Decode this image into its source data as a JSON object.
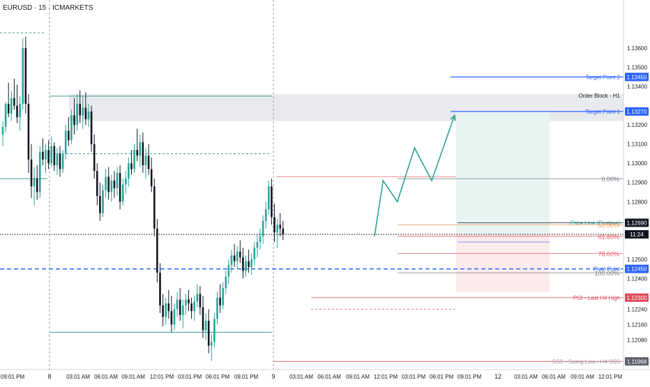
{
  "header": {
    "symbol_label": "EURUSD · 15 · ICMARKETS"
  },
  "colors": {
    "up": "#26a69a",
    "down": "#131722",
    "teal_level": "#3b9c94",
    "red_level": "#e57373",
    "blue_target": "#2962ff",
    "pivot_blue": "#2962ff",
    "fib_gray": "#787b86",
    "fib_orange": "#f0a35e",
    "fib_red": "#f05f6a",
    "order_block_fill": "#e9eaed",
    "tp_zone": "#e6f5f1",
    "sl_zone": "#fcebeb",
    "projection": "#2aa195",
    "price_line": "#2aa195"
  },
  "chart_data": {
    "type": "candlestick",
    "symbol": "EURUSD",
    "timeframe": "15",
    "broker": "ICMARKETS",
    "ylim": [
      1.1194,
      1.138
    ],
    "y_ticks": [
      "1.12000",
      "1.12080",
      "1.12160",
      "1.12240",
      "1.12330",
      "1.12400",
      "1.12500",
      "1.12600",
      "1.12800",
      "1.12900",
      "1.13000",
      "1.13100",
      "1.13200",
      "1.13300",
      "1.13400",
      "1.13500",
      "1.13600"
    ],
    "x_ticks": [
      "09:01 PM",
      "8",
      "03:01 AM",
      "06:01 AM",
      "09:01 AM",
      "12:01 PM",
      "03:01 PM",
      "06:01 PM",
      "09:01 PM",
      "9",
      "03:01 AM",
      "06:01 AM",
      "09:01 AM",
      "12:01 PM",
      "03:01 PM",
      "06:01 PM",
      "09:01 PM",
      "12",
      "03:01 AM",
      "06:01 AM",
      "09:01 AM",
      "12:01 PM"
    ],
    "current_price_label": "11:24",
    "current_price": 1.1263,
    "price_labels": [
      {
        "name": "Target Point 2",
        "value": 1.1345,
        "tag": "1.13450",
        "color": "#2962ff"
      },
      {
        "name": "Order Block - H1",
        "value": 1.1332,
        "tag": "",
        "color": "#131722"
      },
      {
        "name": "Target Point 1",
        "value": 1.1327,
        "tag": "1.13270",
        "color": "#2962ff"
      },
      {
        "name": "Price Line (Positive)",
        "value": 1.1269,
        "tag": "1.12690",
        "color": "#2aa195"
      },
      {
        "name": "Pivot Point",
        "value": 1.1245,
        "tag": "1.12450",
        "color": "#2962ff"
      },
      {
        "name": "POI - Last H4 High",
        "value": 1.123,
        "tag": "1.12300",
        "color": "#e04b5a"
      },
      {
        "name": "SSS - Swing Low - H4 SSS",
        "value": 1.11968,
        "tag": "1.11968",
        "color": "#9598a1"
      }
    ],
    "fib_levels": [
      {
        "label": "0.00%",
        "value": 1.1292,
        "color": "#787b86"
      },
      {
        "label": "50.00%",
        "value": 1.1268,
        "color": "#f0a35e"
      },
      {
        "label": "61.80%",
        "value": 1.1262,
        "color": "#f05f6a"
      },
      {
        "label": "78.60%",
        "value": 1.1253,
        "color": "#f05f6a"
      },
      {
        "label": "100.00%",
        "value": 1.1243,
        "color": "#787b86"
      }
    ],
    "projection_path": [
      [
        130.0,
        1.1262
      ],
      [
        133.0,
        1.1291
      ],
      [
        138.0,
        1.128
      ],
      [
        144.0,
        1.1308
      ],
      [
        150.0,
        1.1291
      ],
      [
        158.0,
        1.1325
      ]
    ],
    "candles_ohlc": [
      [
        0,
        1.1315,
        1.1322,
        1.1309,
        1.1319
      ],
      [
        1,
        1.1319,
        1.1332,
        1.1316,
        1.1331
      ],
      [
        2,
        1.1331,
        1.1342,
        1.1324,
        1.1326
      ],
      [
        3,
        1.1326,
        1.1338,
        1.1322,
        1.1334
      ],
      [
        4,
        1.1334,
        1.1344,
        1.1328,
        1.133
      ],
      [
        5,
        1.133,
        1.1341,
        1.1321,
        1.1324
      ],
      [
        6,
        1.1324,
        1.1335,
        1.1317,
        1.1331
      ],
      [
        7,
        1.1331,
        1.1365,
        1.1328,
        1.136
      ],
      [
        8,
        1.136,
        1.1366,
        1.1326,
        1.1331
      ],
      [
        9,
        1.1331,
        1.1336,
        1.1295,
        1.1302
      ],
      [
        10,
        1.1302,
        1.131,
        1.1282,
        1.1288
      ],
      [
        11,
        1.1288,
        1.1298,
        1.1278,
        1.1292
      ],
      [
        12,
        1.1292,
        1.1299,
        1.1281,
        1.1285
      ],
      [
        13,
        1.1285,
        1.1309,
        1.1282,
        1.1306
      ],
      [
        14,
        1.1306,
        1.1313,
        1.1299,
        1.1302
      ],
      [
        15,
        1.1302,
        1.131,
        1.1295,
        1.1307
      ],
      [
        16,
        1.1307,
        1.1312,
        1.1297,
        1.13
      ],
      [
        17,
        1.13,
        1.1314,
        1.1298,
        1.1309
      ],
      [
        18,
        1.1309,
        1.1311,
        1.1296,
        1.1299
      ],
      [
        19,
        1.1299,
        1.1308,
        1.1294,
        1.1305
      ],
      [
        20,
        1.1305,
        1.1309,
        1.1293,
        1.1297
      ],
      [
        21,
        1.1297,
        1.1307,
        1.1295,
        1.1305
      ],
      [
        22,
        1.1305,
        1.132,
        1.1302,
        1.1317
      ],
      [
        23,
        1.1317,
        1.1324,
        1.1309,
        1.1312
      ],
      [
        24,
        1.1312,
        1.1328,
        1.131,
        1.1325
      ],
      [
        25,
        1.1325,
        1.1334,
        1.1315,
        1.132
      ],
      [
        26,
        1.132,
        1.1336,
        1.1317,
        1.1331
      ],
      [
        27,
        1.1331,
        1.1338,
        1.1321,
        1.1325
      ],
      [
        28,
        1.1325,
        1.1335,
        1.1318,
        1.1329
      ],
      [
        29,
        1.1329,
        1.1337,
        1.132,
        1.1323
      ],
      [
        30,
        1.1323,
        1.1331,
        1.1319,
        1.1327
      ],
      [
        31,
        1.1327,
        1.133,
        1.1306,
        1.131
      ],
      [
        32,
        1.131,
        1.1315,
        1.1292,
        1.1296
      ],
      [
        33,
        1.1296,
        1.13,
        1.1278,
        1.1283
      ],
      [
        34,
        1.1283,
        1.129,
        1.127,
        1.1274
      ],
      [
        35,
        1.1274,
        1.1289,
        1.1272,
        1.1286
      ],
      [
        36,
        1.1286,
        1.1297,
        1.1282,
        1.1293
      ],
      [
        37,
        1.1293,
        1.1298,
        1.1281,
        1.1285
      ],
      [
        38,
        1.1285,
        1.1294,
        1.128,
        1.1291
      ],
      [
        39,
        1.1291,
        1.1296,
        1.1282,
        1.1287
      ],
      [
        40,
        1.1287,
        1.1298,
        1.1283,
        1.1295
      ],
      [
        41,
        1.1295,
        1.1299,
        1.1276,
        1.128
      ],
      [
        42,
        1.128,
        1.1292,
        1.1278,
        1.1289
      ],
      [
        43,
        1.1289,
        1.1296,
        1.1284,
        1.1292
      ],
      [
        44,
        1.1292,
        1.1303,
        1.1288,
        1.13
      ],
      [
        45,
        1.13,
        1.1307,
        1.1294,
        1.1297
      ],
      [
        46,
        1.1297,
        1.131,
        1.1295,
        1.1307
      ],
      [
        47,
        1.1307,
        1.1318,
        1.1301,
        1.1304
      ],
      [
        48,
        1.1304,
        1.1315,
        1.1298,
        1.1311
      ],
      [
        49,
        1.1311,
        1.1316,
        1.1295,
        1.1299
      ],
      [
        50,
        1.1299,
        1.1308,
        1.1292,
        1.1304
      ],
      [
        51,
        1.1304,
        1.131,
        1.1294,
        1.1297
      ],
      [
        52,
        1.1297,
        1.1303,
        1.1285,
        1.1288
      ],
      [
        53,
        1.1288,
        1.1292,
        1.1262,
        1.1266
      ],
      [
        54,
        1.1266,
        1.1271,
        1.1238,
        1.1243
      ],
      [
        55,
        1.1243,
        1.1248,
        1.1222,
        1.1226
      ],
      [
        56,
        1.1226,
        1.1232,
        1.1215,
        1.122
      ],
      [
        57,
        1.122,
        1.123,
        1.1216,
        1.1227
      ],
      [
        58,
        1.1227,
        1.1234,
        1.1219,
        1.1223
      ],
      [
        59,
        1.1223,
        1.1231,
        1.1212,
        1.1216
      ],
      [
        60,
        1.1216,
        1.1227,
        1.1213,
        1.1224
      ],
      [
        61,
        1.1224,
        1.1233,
        1.122,
        1.1229
      ],
      [
        62,
        1.1229,
        1.1235,
        1.1218,
        1.1221
      ],
      [
        63,
        1.1221,
        1.1229,
        1.1214,
        1.1226
      ],
      [
        64,
        1.1226,
        1.1232,
        1.1221,
        1.1229
      ],
      [
        65,
        1.1229,
        1.1234,
        1.1223,
        1.1227
      ],
      [
        66,
        1.1227,
        1.123,
        1.1219,
        1.1223
      ],
      [
        67,
        1.1223,
        1.1231,
        1.1218,
        1.1228
      ],
      [
        68,
        1.1228,
        1.1237,
        1.1225,
        1.1232
      ],
      [
        69,
        1.1232,
        1.1236,
        1.1221,
        1.1225
      ],
      [
        70,
        1.1225,
        1.1231,
        1.1209,
        1.1213
      ],
      [
        71,
        1.1213,
        1.1222,
        1.1208,
        1.1218
      ],
      [
        72,
        1.1218,
        1.1224,
        1.1201,
        1.1205
      ],
      [
        73,
        1.1205,
        1.1211,
        1.1197,
        1.1207
      ],
      [
        74,
        1.1207,
        1.1222,
        1.1204,
        1.1219
      ],
      [
        75,
        1.1219,
        1.1233,
        1.1216,
        1.123
      ],
      [
        76,
        1.123,
        1.1237,
        1.1222,
        1.1226
      ],
      [
        77,
        1.1226,
        1.1238,
        1.1224,
        1.1235
      ],
      [
        78,
        1.1235,
        1.1244,
        1.1232,
        1.1241
      ],
      [
        79,
        1.1241,
        1.125,
        1.1237,
        1.1247
      ],
      [
        80,
        1.1247,
        1.1255,
        1.1243,
        1.1252
      ],
      [
        81,
        1.1252,
        1.1258,
        1.1246,
        1.1249
      ],
      [
        82,
        1.1249,
        1.1257,
        1.1245,
        1.1254
      ],
      [
        83,
        1.1254,
        1.126,
        1.1248,
        1.1251
      ],
      [
        84,
        1.1251,
        1.1256,
        1.124,
        1.1244
      ],
      [
        85,
        1.1244,
        1.1252,
        1.1241,
        1.1249
      ],
      [
        86,
        1.1249,
        1.1255,
        1.1243,
        1.1246
      ],
      [
        87,
        1.1246,
        1.1253,
        1.1242,
        1.125
      ],
      [
        88,
        1.125,
        1.1259,
        1.1247,
        1.1256
      ],
      [
        89,
        1.1256,
        1.1263,
        1.1251,
        1.1259
      ],
      [
        90,
        1.1259,
        1.1266,
        1.1255,
        1.1262
      ],
      [
        91,
        1.1262,
        1.1273,
        1.1258,
        1.127
      ],
      [
        92,
        1.127,
        1.128,
        1.1266,
        1.1276
      ],
      [
        93,
        1.1276,
        1.1291,
        1.1273,
        1.1288
      ],
      [
        94,
        1.1288,
        1.1292,
        1.1268,
        1.1272
      ],
      [
        95,
        1.1272,
        1.1279,
        1.1259,
        1.1264
      ],
      [
        96,
        1.1264,
        1.1271,
        1.1256,
        1.1268
      ],
      [
        97,
        1.1268,
        1.1274,
        1.1262,
        1.1266
      ],
      [
        98,
        1.1266,
        1.127,
        1.126,
        1.1263
      ]
    ]
  }
}
